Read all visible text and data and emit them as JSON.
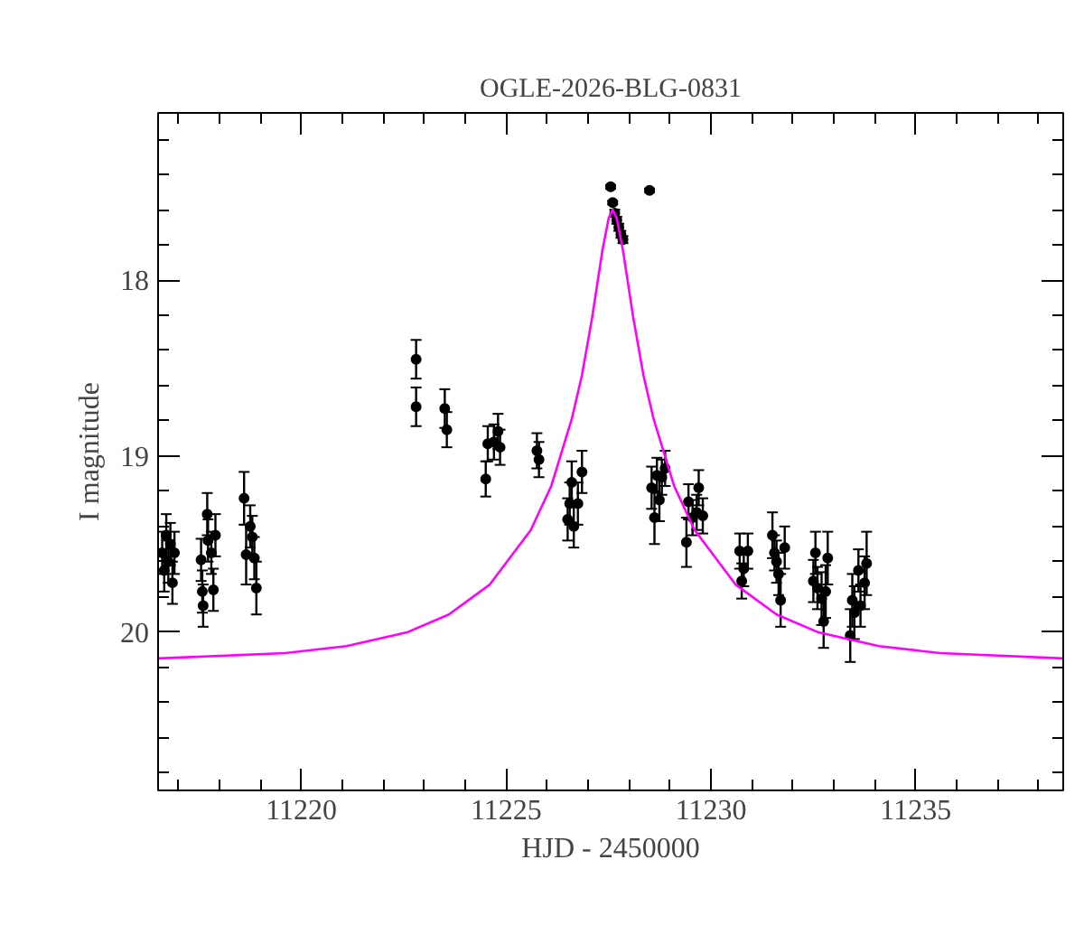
{
  "chart_data": {
    "type": "scatter",
    "title": "OGLE-2026-BLG-0831",
    "xlabel": "HJD - 2450000",
    "ylabel": "I magnitude",
    "xlim": [
      11216.5,
      11238.6
    ],
    "ylim": [
      20.9,
      17.05
    ],
    "xticks": [
      {
        "value": 11217,
        "label": null
      },
      {
        "value": 11218,
        "label": null
      },
      {
        "value": 11219,
        "label": null
      },
      11220,
      {
        "value": 11221,
        "label": null
      },
      {
        "value": 11222,
        "label": null
      },
      {
        "value": 11223,
        "label": null
      },
      {
        "value": 11224,
        "label": null
      },
      11225,
      {
        "value": 11226,
        "label": null
      },
      {
        "value": 11227,
        "label": null
      },
      {
        "value": 11228,
        "label": null
      },
      {
        "value": 11229,
        "label": null
      },
      11230,
      {
        "value": 11231,
        "label": null
      },
      {
        "value": 11232,
        "label": null
      },
      {
        "value": 11233,
        "label": null
      },
      {
        "value": 11234,
        "label": null
      },
      11235,
      {
        "value": 11236,
        "label": null
      },
      {
        "value": 11237,
        "label": null
      },
      {
        "value": 11238,
        "label": null
      }
    ],
    "yticks": [
      {
        "value": 17.2,
        "label": null
      },
      {
        "value": 17.4,
        "label": null
      },
      {
        "value": 17.6,
        "label": null
      },
      {
        "value": 17.8,
        "label": null
      },
      18,
      {
        "value": 18.2,
        "label": null
      },
      {
        "value": 18.4,
        "label": null
      },
      {
        "value": 18.6,
        "label": null
      },
      {
        "value": 18.8,
        "label": null
      },
      19,
      {
        "value": 19.2,
        "label": null
      },
      {
        "value": 19.4,
        "label": null
      },
      {
        "value": 19.6,
        "label": null
      },
      {
        "value": 19.8,
        "label": null
      },
      20,
      {
        "value": 20.2,
        "label": null
      },
      {
        "value": 20.4,
        "label": null
      },
      {
        "value": 20.6,
        "label": null
      },
      {
        "value": 20.8,
        "label": null
      }
    ],
    "grid": false,
    "series": [
      {
        "marker": "circle",
        "color": "#000000",
        "x": [
          11216.6,
          11216.65,
          11216.7,
          11216.75,
          11216.8,
          11216.85,
          11216.9,
          11217.55,
          11217.58,
          11217.6,
          11217.7,
          11217.72,
          11217.8,
          11217.85,
          11217.9,
          11218.6,
          11218.65,
          11218.75,
          11218.8,
          11218.85,
          11218.9,
          11222.8,
          11222.8,
          11223.5,
          11223.55,
          11224.5,
          11224.55,
          11224.7,
          11224.8,
          11224.85,
          11225.75,
          11225.8,
          11226.5,
          11226.55,
          11226.6,
          11226.65,
          11226.75,
          11226.85,
          11227.55,
          11227.6,
          11227.65,
          11227.7,
          11227.75,
          11227.8,
          11227.85,
          11228.5,
          11228.55,
          11228.62,
          11228.68,
          11228.74,
          11228.8,
          11228.88,
          11229.4,
          11229.45,
          11229.55,
          11229.65,
          11229.7,
          11229.8,
          11230.7,
          11230.75,
          11230.8,
          11230.9,
          11231.5,
          11231.55,
          11231.6,
          11231.65,
          11231.7,
          11231.8,
          11232.5,
          11232.55,
          11232.6,
          11232.7,
          11232.75,
          11232.8,
          11232.85,
          11233.4,
          11233.45,
          11233.5,
          11233.6,
          11233.65,
          11233.75,
          11233.8
        ],
        "values": [
          19.55,
          19.65,
          19.45,
          19.6,
          19.5,
          19.72,
          19.55,
          19.59,
          19.77,
          19.85,
          19.33,
          19.48,
          19.55,
          19.76,
          19.45,
          19.24,
          19.56,
          19.4,
          19.46,
          19.58,
          19.75,
          18.45,
          18.72,
          18.73,
          18.85,
          19.13,
          18.93,
          18.92,
          18.86,
          18.95,
          18.97,
          19.02,
          19.36,
          19.27,
          19.15,
          19.4,
          19.27,
          19.09,
          17.47,
          17.56,
          17.62,
          17.66,
          17.7,
          17.74,
          17.77,
          17.49,
          19.18,
          19.35,
          19.11,
          19.25,
          19.12,
          19.07,
          19.49,
          19.26,
          19.35,
          19.32,
          19.18,
          19.34,
          19.54,
          19.71,
          19.64,
          19.54,
          19.45,
          19.55,
          19.6,
          19.67,
          19.82,
          19.52,
          19.71,
          19.55,
          19.75,
          19.81,
          19.94,
          19.77,
          19.58,
          20.02,
          19.82,
          19.89,
          19.65,
          19.85,
          19.72,
          19.61
        ],
        "errors": [
          0.12,
          0.12,
          0.12,
          0.12,
          0.12,
          0.12,
          0.12,
          0.12,
          0.12,
          0.12,
          0.12,
          0.12,
          0.12,
          0.12,
          0.12,
          0.15,
          0.17,
          0.12,
          0.12,
          0.12,
          0.15,
          0.11,
          0.11,
          0.11,
          0.1,
          0.1,
          0.1,
          0.1,
          0.1,
          0.1,
          0.1,
          0.1,
          0.12,
          0.12,
          0.12,
          0.12,
          0.12,
          0.12,
          0.01,
          0.01,
          0.02,
          0.02,
          0.02,
          0.02,
          0.02,
          0.01,
          0.12,
          0.15,
          0.1,
          0.12,
          0.1,
          0.1,
          0.14,
          0.1,
          0.1,
          0.1,
          0.1,
          0.1,
          0.1,
          0.1,
          0.1,
          0.1,
          0.13,
          0.1,
          0.12,
          0.12,
          0.15,
          0.12,
          0.12,
          0.12,
          0.12,
          0.15,
          0.15,
          0.15,
          0.15,
          0.15,
          0.15,
          0.15,
          0.12,
          0.12,
          0.15,
          0.18
        ]
      },
      {
        "type": "line",
        "color": "#ff00ff",
        "x": [
          11216.5,
          11219.6,
          11221.1,
          11222.6,
          11223.6,
          11224.6,
          11225.6,
          11226.1,
          11226.6,
          11226.85,
          11227.1,
          11227.35,
          11227.5,
          11227.6,
          11227.7,
          11227.85,
          11228.1,
          11228.35,
          11228.6,
          11229.1,
          11229.6,
          11230.6,
          11231.6,
          11232.6,
          11234.1,
          11235.6,
          11238.6
        ],
        "values": [
          20.15,
          20.12,
          20.08,
          20.0,
          19.9,
          19.73,
          19.42,
          19.17,
          18.79,
          18.54,
          18.21,
          17.83,
          17.65,
          17.6,
          17.65,
          17.83,
          18.21,
          18.54,
          18.79,
          19.17,
          19.42,
          19.73,
          19.9,
          20.0,
          20.08,
          20.12,
          20.15
        ]
      }
    ]
  }
}
